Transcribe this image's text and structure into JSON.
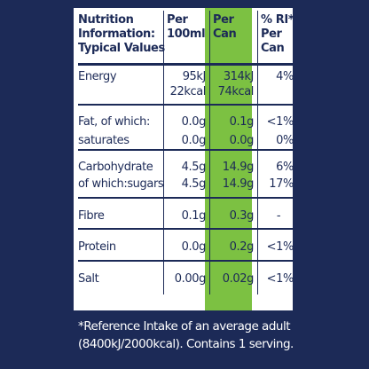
{
  "header": {
    "col1": [
      "Nutrition",
      "Information:",
      "Typical Values"
    ],
    "col2": [
      "Per",
      "100ml"
    ],
    "col3": [
      "Per",
      "Can"
    ],
    "col4": [
      "% RI*",
      "Per",
      "Can"
    ]
  },
  "rows": [
    {
      "label": [
        "Energy",
        ""
      ],
      "per100": [
        "95kJ",
        "22kcal"
      ],
      "perCan": [
        "314kJ",
        "74kcal"
      ],
      "ri": [
        "4%",
        ""
      ]
    },
    {
      "label": [
        "Fat, of which:",
        "saturates"
      ],
      "per100": [
        "0.0g",
        "0.0g"
      ],
      "perCan": [
        "0.1g",
        "0.0g"
      ],
      "ri": [
        "<1%",
        "0%"
      ]
    },
    {
      "label": [
        "Carbohydrate",
        "of which:sugars"
      ],
      "per100": [
        "4.5g",
        "4.5g"
      ],
      "perCan": [
        "14.9g",
        "14.9g"
      ],
      "ri": [
        "6%",
        "17%"
      ]
    },
    {
      "label": [
        "Fibre"
      ],
      "per100": [
        "0.1g"
      ],
      "perCan": [
        "0.3g"
      ],
      "ri": [
        "-"
      ]
    },
    {
      "label": [
        "Protein"
      ],
      "per100": [
        "0.0g"
      ],
      "perCan": [
        "0.2g"
      ],
      "ri": [
        "<1%"
      ]
    },
    {
      "label": [
        "Salt"
      ],
      "per100": [
        "0.00g"
      ],
      "perCan": [
        "0.02g"
      ],
      "ri": [
        "<1%"
      ]
    }
  ],
  "footnote": [
    "*Reference Intake of an average adult",
    "(8400kJ/2000kcal). Contains 1 serving."
  ],
  "colors": {
    "background": "#1c2a57",
    "panel": "#ffffff",
    "green": "#7cc142",
    "text": "#1c2a57"
  }
}
